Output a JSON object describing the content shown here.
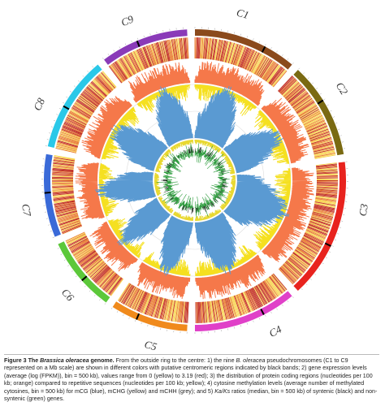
{
  "figure": {
    "chromosomes": [
      {
        "label": "C1",
        "color": "#8b4a1c"
      },
      {
        "label": "C2",
        "color": "#7a6a12"
      },
      {
        "label": "C3",
        "color": "#e8231e"
      },
      {
        "label": "C4",
        "color": "#e040c8"
      },
      {
        "label": "C5",
        "color": "#f08a1c"
      },
      {
        "label": "C6",
        "color": "#5cc83a"
      },
      {
        "label": "C7",
        "color": "#3a6ad8"
      },
      {
        "label": "C8",
        "color": "#2ac8e8"
      },
      {
        "label": "C9",
        "color": "#8a3ab8"
      }
    ]
  },
  "caption": {
    "segments": [
      {
        "text": "Figure 3 ",
        "style": "bold"
      },
      {
        "text": "The ",
        "style": "bold"
      },
      {
        "text": "Brassica oleracea",
        "style": "bold-italic"
      },
      {
        "text": " genome.",
        "style": "bold"
      },
      {
        "text": " From the outside ring to the centre: 1) the nine ",
        "style": "normal"
      },
      {
        "text": "B. oleracea",
        "style": "italic"
      },
      {
        "text": " pseudochromosomes (C1 to C9 represented on a Mb scale) are shown in different colors with putative centromeric regions indicated by black bands; 2) gene expression levels (average (log (FPKM)), bin = 500 kb), values range from 0 (yellow) to 3.19 (red); 3) the distribution of protein coding regions (nucleotides per 100 kb; orange) compared to repetitive sequences (nucleotides per 100 kb; yellow); 4) cytosine methylation levels (average number of methylated cytosines, bin = 500 kb) for mCG (blue), mCHG (yellow) and mCHH (grey); and 5) ",
        "style": "normal"
      },
      {
        "text": "Ka/Ks",
        "style": "italic"
      },
      {
        "text": " ratios (median, bin = 500 kb) of syntenic (black) and non-syntenic (green) genes.",
        "style": "normal"
      }
    ]
  }
}
